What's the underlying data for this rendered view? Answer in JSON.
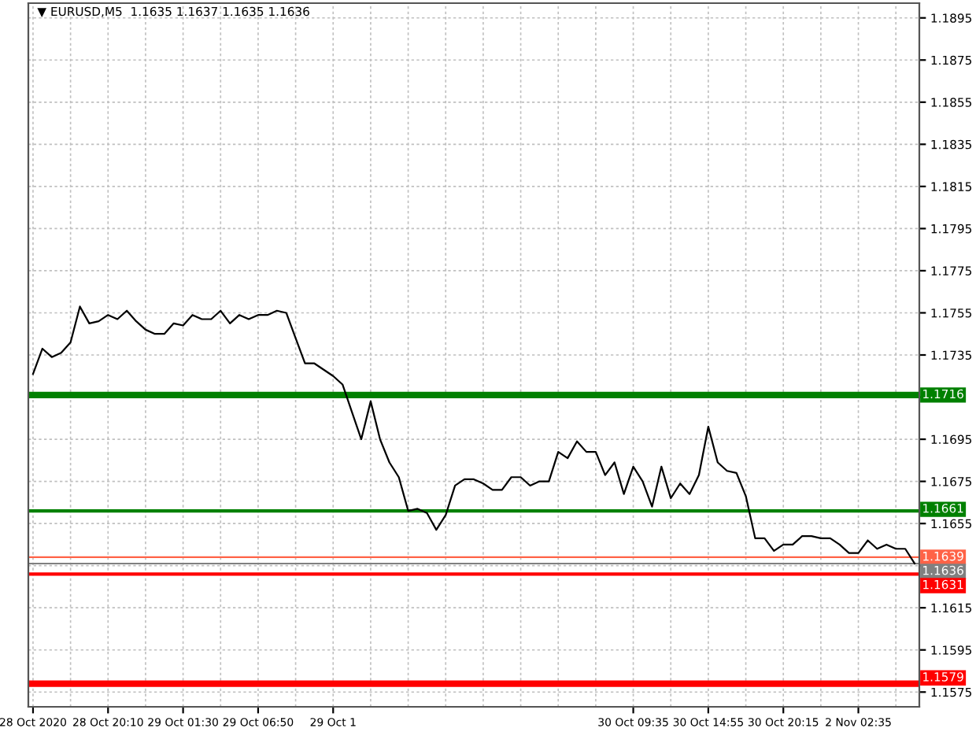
{
  "chart_data": {
    "type": "line",
    "title": "▼ EURUSD,M5  1.1635 1.1637 1.1635 1.1636",
    "categories": [
      "28 Oct 2020",
      null,
      null,
      null,
      null,
      null,
      null,
      null,
      "28 Oct 20:10",
      null,
      null,
      null,
      null,
      null,
      null,
      null,
      "29 Oct 01:30",
      null,
      null,
      null,
      null,
      null,
      null,
      null,
      "29 Oct 06:50",
      null,
      null,
      null,
      null,
      null,
      null,
      null,
      "29 Oct 1",
      null,
      null,
      null,
      null,
      null,
      null,
      null,
      null,
      null,
      null,
      null,
      null,
      null,
      null,
      null,
      null,
      null,
      null,
      null,
      null,
      null,
      null,
      null,
      null,
      null,
      null,
      null,
      null,
      null,
      null,
      null,
      "30 Oct 09:35",
      null,
      null,
      null,
      null,
      null,
      null,
      null,
      "30 Oct 14:55",
      null,
      null,
      null,
      null,
      null,
      null,
      null,
      "30 Oct 20:15",
      null,
      null,
      null,
      null,
      null,
      null,
      null,
      "2 Nov 02:35",
      null,
      null,
      null,
      null,
      null,
      null
    ],
    "series": [
      {
        "color": "#000000",
        "values": [
          1.1726,
          1.1738,
          1.1734,
          1.1736,
          1.1741,
          1.1758,
          1.175,
          1.1751,
          1.1754,
          1.1752,
          1.1756,
          1.1751,
          1.1747,
          1.1745,
          1.1745,
          1.175,
          1.1749,
          1.1754,
          1.1752,
          1.1752,
          1.1756,
          1.175,
          1.1754,
          1.1752,
          1.1754,
          1.1754,
          1.1756,
          1.1755,
          1.1743,
          1.1731,
          1.1731,
          1.1728,
          1.1725,
          1.1721,
          1.1708,
          1.1695,
          1.1713,
          1.1695,
          1.1684,
          1.1677,
          1.1661,
          1.1662,
          1.166,
          1.1652,
          1.1659,
          1.1673,
          1.1676,
          1.1676,
          1.1674,
          1.1671,
          1.1671,
          1.1677,
          1.1677,
          1.1673,
          1.1675,
          1.1675,
          1.1689,
          1.1686,
          1.1694,
          1.1689,
          1.1689,
          1.1678,
          1.1684,
          1.1669,
          1.1682,
          1.1675,
          1.1663,
          1.1682,
          1.1667,
          1.1674,
          1.1669,
          1.1678,
          1.1701,
          1.1684,
          1.168,
          1.1679,
          1.1668,
          1.1648,
          1.1648,
          1.1642,
          1.1645,
          1.1645,
          1.1649,
          1.1649,
          1.1648,
          1.1648,
          1.1645,
          1.1641,
          1.1641,
          1.1647,
          1.1643,
          1.1645,
          1.1643,
          1.1643,
          1.1636
        ]
      }
    ],
    "ylim": [
      1.1568,
      1.1902
    ],
    "yticks": [
      1.1895,
      1.1875,
      1.1855,
      1.1835,
      1.1815,
      1.1795,
      1.1775,
      1.1755,
      1.1735,
      {
        "value": 1.1715,
        "label": null
      },
      1.1695,
      1.1675,
      1.1655,
      {
        "value": 1.1635,
        "label": null
      },
      1.1615,
      1.1595,
      1.1575
    ],
    "grid": true,
    "marker": "none",
    "line_style": "solid",
    "ref_lines": [
      {
        "axis": "y",
        "value": 1.1716,
        "label": "1.1716",
        "color": "#008000"
      },
      {
        "axis": "y",
        "value": 1.1661,
        "label": "1.1661",
        "color": "#008000"
      },
      {
        "axis": "y",
        "value": 1.1639,
        "label": "1.1639",
        "color": "#ff6347"
      },
      {
        "axis": "y",
        "value": 1.1636,
        "label": "1.1636",
        "color": "#808080"
      },
      {
        "axis": "y",
        "value": 1.1631,
        "label": "1.1631",
        "color": "#ff0000"
      },
      {
        "axis": "y",
        "value": 1.1579,
        "label": "1.1579",
        "color": "#ff0000"
      }
    ]
  }
}
